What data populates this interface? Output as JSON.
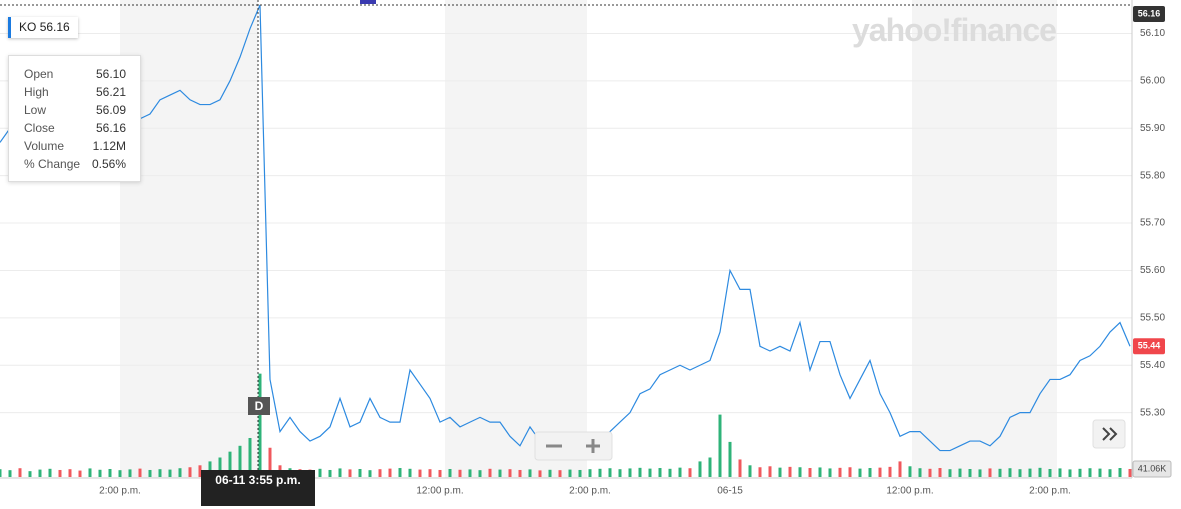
{
  "ticker": {
    "symbol": "KO"
  },
  "watermark": "yahoo!finance",
  "tooltip": {
    "rows": [
      {
        "label": "Open",
        "value": "56.10"
      },
      {
        "label": "High",
        "value": "56.21"
      },
      {
        "label": "Low",
        "value": "56.09"
      },
      {
        "label": "Close",
        "value": "56.16"
      },
      {
        "label": "Volume",
        "value": "1.12M"
      },
      {
        "label": "% Change",
        "value": "0.56%"
      }
    ]
  },
  "crosshair_label": "06-11 3:55 p.m.",
  "marker": "D",
  "chart_data": {
    "type": "line",
    "categories": [
      null,
      null,
      null,
      null,
      null,
      null,
      null,
      null,
      null,
      null,
      null,
      null,
      "2:00 p.m.",
      null,
      null,
      null,
      null,
      null,
      null,
      null,
      null,
      null,
      null,
      null,
      null,
      null,
      null,
      null,
      null,
      null,
      null,
      null,
      null,
      null,
      null,
      null,
      null,
      null,
      null,
      null,
      null,
      null,
      null,
      null,
      "12:00 p.m.",
      null,
      null,
      null,
      null,
      null,
      null,
      null,
      null,
      null,
      null,
      null,
      null,
      null,
      null,
      "2:00 p.m.",
      null,
      null,
      null,
      null,
      null,
      null,
      null,
      null,
      null,
      null,
      null,
      null,
      null,
      "06-15",
      null,
      null,
      null,
      null,
      null,
      null,
      null,
      null,
      null,
      null,
      null,
      null,
      null,
      null,
      null,
      null,
      null,
      "12:00 p.m.",
      null,
      null,
      null,
      null,
      null,
      null,
      null,
      null,
      null,
      null,
      null,
      null,
      null,
      "2:00 p.m.",
      null,
      null,
      null,
      null,
      null,
      null,
      null,
      null
    ],
    "series": [
      {
        "name": "KO",
        "color": "#2d8ae0",
        "values": [
          55.87,
          55.9,
          55.87,
          55.88,
          55.91,
          55.92,
          55.91,
          55.87,
          55.86,
          55.88,
          55.91,
          55.92,
          55.93,
          55.93,
          55.92,
          55.93,
          55.96,
          55.97,
          55.98,
          55.96,
          55.95,
          55.95,
          55.96,
          56.0,
          56.05,
          56.11,
          56.16,
          55.37,
          55.26,
          55.29,
          55.26,
          55.24,
          55.25,
          55.27,
          55.33,
          55.27,
          55.28,
          55.33,
          55.29,
          55.28,
          55.28,
          55.39,
          55.36,
          55.33,
          55.28,
          55.29,
          55.27,
          55.28,
          55.29,
          55.28,
          55.28,
          55.25,
          55.23,
          55.27,
          55.24,
          55.24,
          55.23,
          55.23,
          55.23,
          55.24,
          55.24,
          55.26,
          55.28,
          55.3,
          55.34,
          55.35,
          55.38,
          55.39,
          55.4,
          55.39,
          55.4,
          55.41,
          55.47,
          55.6,
          55.56,
          55.56,
          55.44,
          55.43,
          55.44,
          55.43,
          55.49,
          55.39,
          55.45,
          55.45,
          55.38,
          55.33,
          55.37,
          55.41,
          55.34,
          55.3,
          55.25,
          55.26,
          55.26,
          55.24,
          55.22,
          55.22,
          55.23,
          55.24,
          55.24,
          55.23,
          55.25,
          55.29,
          55.3,
          55.3,
          55.34,
          55.37,
          55.37,
          55.38,
          55.41,
          55.42,
          55.44,
          55.47,
          55.49,
          55.44
        ]
      },
      {
        "name": "Volume",
        "axis": "y2",
        "up_color": "#2fb379",
        "down_color": "#f0585d",
        "last_label": "41.06K",
        "values": [
          40000,
          35000,
          45000,
          30000,
          38000,
          42000,
          36000,
          40000,
          33000,
          44000,
          37000,
          41000,
          35000,
          39000,
          43000,
          36000,
          40000,
          38000,
          45000,
          50000,
          60000,
          80000,
          100000,
          130000,
          160000,
          200000,
          530000,
          150000,
          60000,
          45000,
          40000,
          38000,
          42000,
          36000,
          44000,
          39000,
          41000,
          35000,
          40000,
          43000,
          46000,
          42000,
          38000,
          40000,
          36000,
          41000,
          37000,
          39000,
          35000,
          42000,
          38000,
          40000,
          36000,
          39000,
          34000,
          37000,
          35000,
          38000,
          36000,
          40000,
          42000,
          45000,
          40000,
          44000,
          47000,
          43000,
          46000,
          42000,
          48000,
          45000,
          80000,
          100000,
          320000,
          180000,
          90000,
          60000,
          50000,
          55000,
          48000,
          52000,
          50000,
          46000,
          49000,
          44000,
          47000,
          50000,
          43000,
          46000,
          48000,
          52000,
          80000,
          55000,
          45000,
          42000,
          46000,
          40000,
          43000,
          41000,
          39000,
          44000,
          42000,
          45000,
          40000,
          43000,
          47000,
          41000,
          44000,
          39000,
          42000,
          45000,
          43000,
          40000,
          46000,
          41060
        ]
      }
    ],
    "ylim": [
      55.16,
      56.16
    ],
    "yticks": [
      {
        "value": 56.1,
        "label": "56.10"
      },
      {
        "value": 56.0,
        "label": "56.00"
      },
      {
        "value": 55.9,
        "label": "55.90"
      },
      {
        "value": 55.8,
        "label": "55.80"
      },
      {
        "value": 55.7,
        "label": "55.70"
      },
      {
        "value": 55.6,
        "label": "55.60"
      },
      {
        "value": 55.5,
        "label": "55.50"
      },
      {
        "value": 55.4,
        "label": "55.40"
      },
      {
        "value": 55.3,
        "label": "55.30"
      }
    ],
    "y2lim": [
      0,
      600000
    ],
    "grid": true,
    "last_price_color": "#f0464b",
    "hover_price_color": "#333333"
  }
}
